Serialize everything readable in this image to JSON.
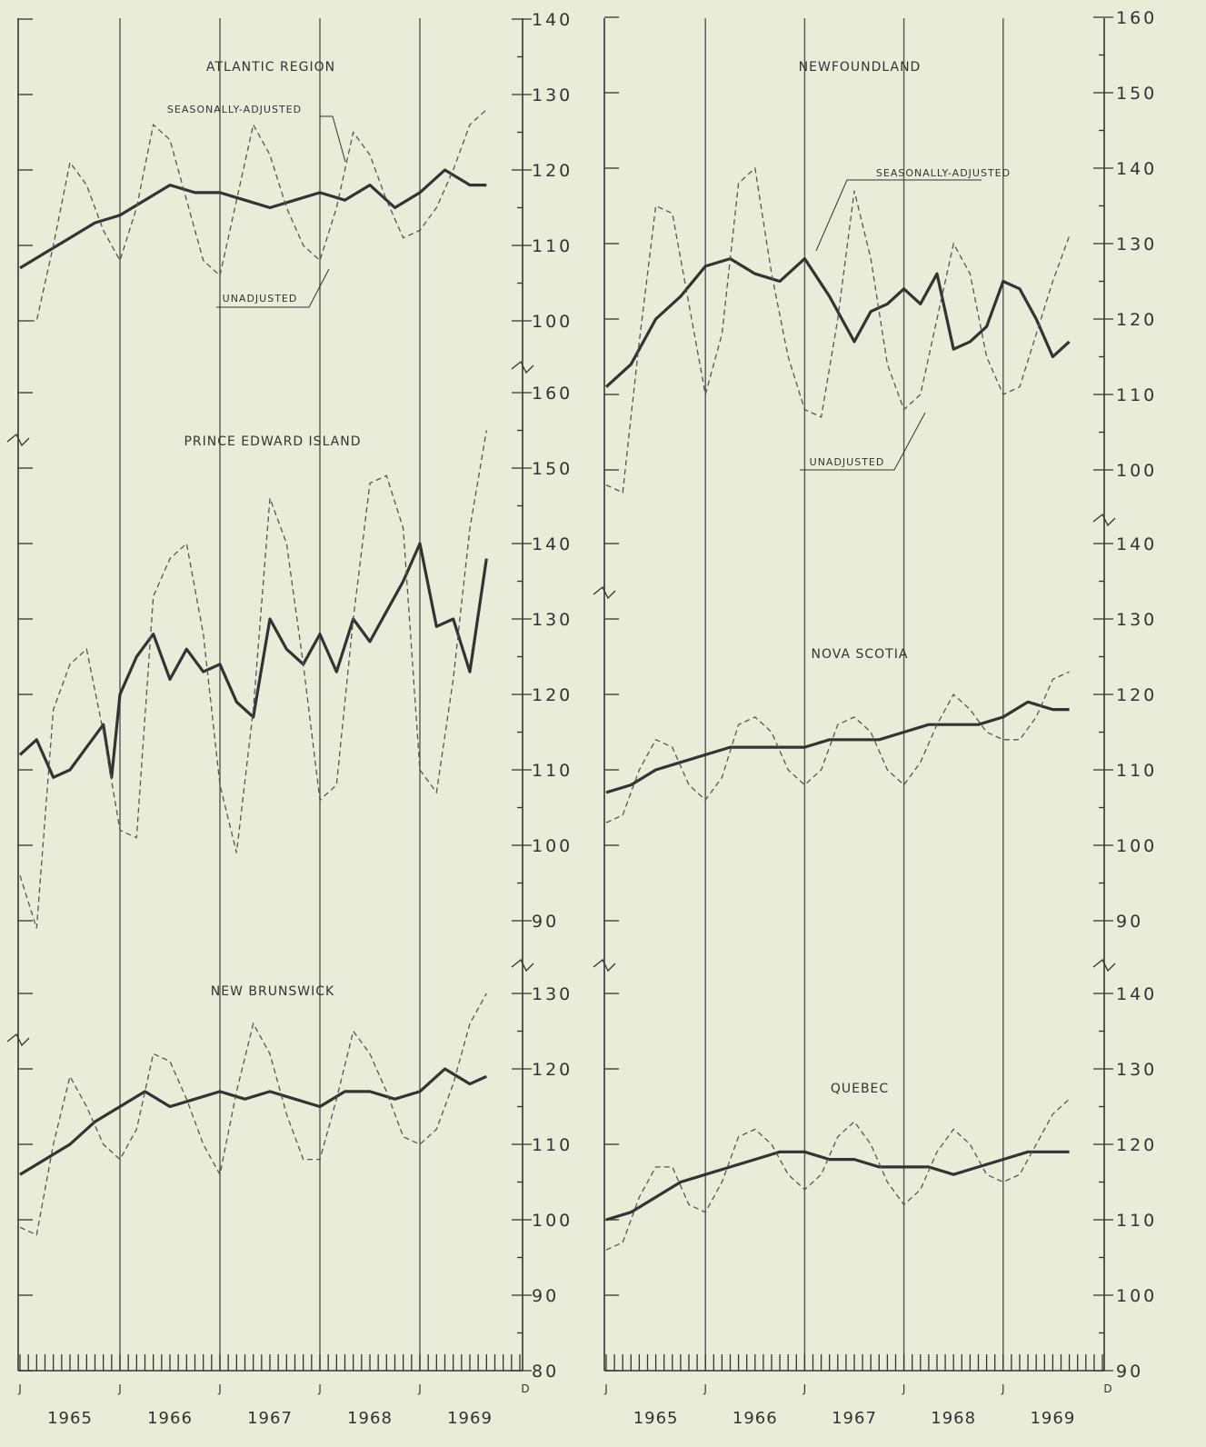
{
  "colors": {
    "background": "#e9ecd8",
    "ink": "#333333"
  },
  "annotations": {
    "seasonally_adjusted": "SEASONALLY-ADJUSTED",
    "unadjusted": "UNADJUSTED"
  },
  "x_axis": {
    "years": [
      "1965",
      "1966",
      "1967",
      "1968",
      "1969"
    ],
    "month_labels": [
      "J",
      "J",
      "J",
      "J",
      "J",
      "D"
    ]
  },
  "chart_data": [
    {
      "type": "line",
      "title": "ATLANTIC REGION",
      "y_ticks": [
        "100",
        "110",
        "120",
        "130",
        "140"
      ],
      "ylim": [
        95,
        140
      ],
      "series": [
        {
          "name": "SEASONALLY-ADJUSTED",
          "style": "solid-heavy",
          "x": [
            0,
            3,
            6,
            9,
            12,
            15,
            18,
            21,
            24,
            27,
            30,
            33,
            36,
            39,
            42,
            45,
            48,
            51,
            54,
            56
          ],
          "y": [
            107,
            109,
            111,
            113,
            114,
            116,
            118,
            117,
            117,
            116,
            115,
            116,
            117,
            116,
            118,
            115,
            117,
            120,
            118,
            118
          ]
        },
        {
          "name": "UNADJUSTED",
          "style": "dashed",
          "x": [
            0,
            2,
            4,
            6,
            8,
            10,
            12,
            14,
            16,
            18,
            20,
            22,
            24,
            26,
            28,
            30,
            32,
            34,
            36,
            38,
            40,
            42,
            44,
            46,
            48,
            50,
            52,
            54,
            56
          ],
          "y": [
            100,
            100,
            110,
            121,
            118,
            112,
            108,
            115,
            126,
            124,
            116,
            108,
            106,
            116,
            126,
            122,
            115,
            110,
            108,
            115,
            125,
            122,
            116,
            111,
            112,
            115,
            120,
            126,
            128
          ]
        }
      ]
    },
    {
      "type": "line",
      "title": "PRINCE EDWARD ISLAND",
      "y_ticks": [
        "90",
        "100",
        "110",
        "120",
        "130",
        "140",
        "150",
        "160"
      ],
      "ylim": [
        85,
        160
      ],
      "series": [
        {
          "name": "SEASONALLY-ADJUSTED",
          "style": "solid-heavy",
          "x": [
            0,
            2,
            4,
            6,
            8,
            10,
            11,
            12,
            14,
            16,
            18,
            20,
            22,
            24,
            26,
            28,
            30,
            32,
            34,
            36,
            38,
            40,
            42,
            44,
            46,
            48,
            50,
            52,
            54,
            56
          ],
          "y": [
            112,
            114,
            109,
            110,
            113,
            116,
            109,
            120,
            125,
            128,
            122,
            126,
            123,
            124,
            119,
            117,
            130,
            126,
            124,
            128,
            123,
            130,
            127,
            131,
            135,
            140,
            129,
            130,
            123,
            138
          ]
        },
        {
          "name": "UNADJUSTED",
          "style": "dashed",
          "x": [
            0,
            2,
            4,
            6,
            8,
            10,
            12,
            14,
            16,
            18,
            20,
            22,
            24,
            26,
            28,
            30,
            32,
            34,
            36,
            38,
            40,
            42,
            44,
            46,
            48,
            50,
            52,
            54,
            56
          ],
          "y": [
            96,
            89,
            118,
            124,
            126,
            115,
            102,
            101,
            133,
            138,
            140,
            128,
            108,
            99,
            118,
            146,
            140,
            124,
            106,
            108,
            130,
            148,
            149,
            142,
            110,
            107,
            122,
            142,
            155
          ]
        }
      ]
    },
    {
      "type": "line",
      "title": "NEW BRUNSWICK",
      "y_ticks": [
        "80",
        "90",
        "100",
        "110",
        "120",
        "130"
      ],
      "ylim": [
        80,
        130
      ],
      "series": [
        {
          "name": "SEASONALLY-ADJUSTED",
          "style": "solid-heavy",
          "x": [
            0,
            3,
            6,
            9,
            12,
            15,
            18,
            21,
            24,
            27,
            30,
            33,
            36,
            39,
            42,
            45,
            48,
            51,
            54,
            56
          ],
          "y": [
            106,
            108,
            110,
            113,
            115,
            117,
            115,
            116,
            117,
            116,
            117,
            116,
            115,
            117,
            117,
            116,
            117,
            120,
            118,
            119
          ]
        },
        {
          "name": "UNADJUSTED",
          "style": "dashed",
          "x": [
            0,
            2,
            4,
            6,
            8,
            10,
            12,
            14,
            16,
            18,
            20,
            22,
            24,
            26,
            28,
            30,
            32,
            34,
            36,
            38,
            40,
            42,
            44,
            46,
            48,
            50,
            52,
            54,
            56
          ],
          "y": [
            99,
            98,
            110,
            119,
            115,
            110,
            108,
            112,
            122,
            121,
            116,
            110,
            106,
            117,
            126,
            122,
            114,
            108,
            108,
            116,
            125,
            122,
            117,
            111,
            110,
            112,
            118,
            126,
            130
          ]
        }
      ]
    },
    {
      "type": "line",
      "title": "NEWFOUNDLAND",
      "y_ticks": [
        "100",
        "110",
        "120",
        "130",
        "140",
        "150",
        "160"
      ],
      "ylim": [
        95,
        160
      ],
      "series": [
        {
          "name": "SEASONALLY-ADJUSTED",
          "style": "solid-heavy",
          "x": [
            0,
            3,
            6,
            9,
            12,
            15,
            18,
            21,
            24,
            27,
            30,
            32,
            34,
            36,
            38,
            40,
            42,
            44,
            46,
            48,
            50,
            52,
            54,
            56
          ],
          "y": [
            111,
            114,
            120,
            123,
            127,
            128,
            126,
            125,
            128,
            123,
            117,
            121,
            122,
            124,
            122,
            126,
            116,
            117,
            119,
            125,
            124,
            120,
            115,
            117
          ]
        },
        {
          "name": "UNADJUSTED",
          "style": "dashed",
          "x": [
            0,
            2,
            4,
            6,
            8,
            10,
            12,
            14,
            16,
            18,
            20,
            22,
            24,
            26,
            28,
            30,
            32,
            34,
            36,
            38,
            40,
            42,
            44,
            46,
            48,
            50,
            52,
            54,
            56
          ],
          "y": [
            98,
            97,
            117,
            135,
            134,
            122,
            110,
            118,
            138,
            140,
            126,
            115,
            108,
            107,
            120,
            137,
            128,
            114,
            108,
            110,
            120,
            130,
            126,
            115,
            110,
            111,
            118,
            125,
            131
          ]
        }
      ]
    },
    {
      "type": "line",
      "title": "NOVA SCOTIA",
      "y_ticks": [
        "90",
        "100",
        "110",
        "120",
        "130",
        "140"
      ],
      "ylim": [
        85,
        140
      ],
      "series": [
        {
          "name": "SEASONALLY-ADJUSTED",
          "style": "solid-heavy",
          "x": [
            0,
            3,
            6,
            9,
            12,
            15,
            18,
            21,
            24,
            27,
            30,
            33,
            36,
            39,
            42,
            45,
            48,
            51,
            54,
            56
          ],
          "y": [
            107,
            108,
            110,
            111,
            112,
            113,
            113,
            113,
            113,
            114,
            114,
            114,
            115,
            116,
            116,
            116,
            117,
            119,
            118,
            118
          ]
        },
        {
          "name": "UNADJUSTED",
          "style": "dashed",
          "x": [
            0,
            2,
            4,
            6,
            8,
            10,
            12,
            14,
            16,
            18,
            20,
            22,
            24,
            26,
            28,
            30,
            32,
            34,
            36,
            38,
            40,
            42,
            44,
            46,
            48,
            50,
            52,
            54,
            56
          ],
          "y": [
            103,
            104,
            110,
            114,
            113,
            108,
            106,
            109,
            116,
            117,
            115,
            110,
            108,
            110,
            116,
            117,
            115,
            110,
            108,
            111,
            116,
            120,
            118,
            115,
            114,
            114,
            117,
            122,
            123
          ]
        }
      ]
    },
    {
      "type": "line",
      "title": "QUEBEC",
      "y_ticks": [
        "90",
        "100",
        "110",
        "120",
        "130",
        "140"
      ],
      "ylim": [
        90,
        140
      ],
      "series": [
        {
          "name": "SEASONALLY-ADJUSTED",
          "style": "solid-heavy",
          "x": [
            0,
            3,
            6,
            9,
            12,
            15,
            18,
            21,
            24,
            27,
            30,
            33,
            36,
            39,
            42,
            45,
            48,
            51,
            54,
            56
          ],
          "y": [
            110,
            111,
            113,
            115,
            116,
            117,
            118,
            119,
            119,
            118,
            118,
            117,
            117,
            117,
            116,
            117,
            118,
            119,
            119,
            119
          ]
        },
        {
          "name": "UNADJUSTED",
          "style": "dashed",
          "x": [
            0,
            2,
            4,
            6,
            8,
            10,
            12,
            14,
            16,
            18,
            20,
            22,
            24,
            26,
            28,
            30,
            32,
            34,
            36,
            38,
            40,
            42,
            44,
            46,
            48,
            50,
            52,
            54,
            56
          ],
          "y": [
            106,
            107,
            113,
            117,
            117,
            112,
            111,
            115,
            121,
            122,
            120,
            116,
            114,
            116,
            121,
            123,
            120,
            115,
            112,
            114,
            119,
            122,
            120,
            116,
            115,
            116,
            120,
            124,
            126
          ]
        }
      ]
    }
  ]
}
